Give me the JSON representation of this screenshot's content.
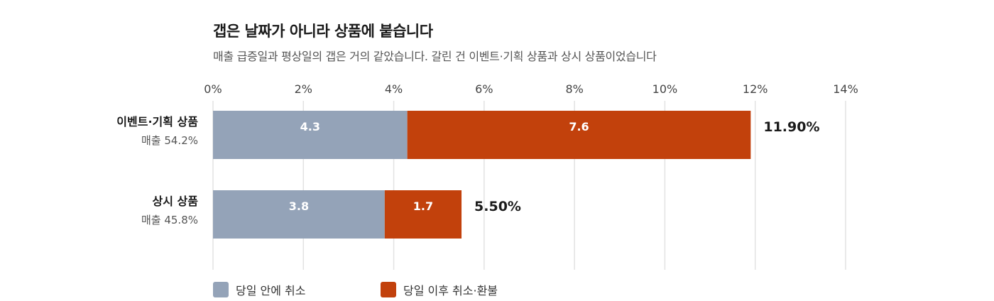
{
  "title": "갭은 날짜가 아니라 상품에 붙습니다",
  "subtitle": "매출 급증일과 평상일의 갭은 거의 같았습니다. 갈린 건 이벤트·기획 상품과 상시 상품이었습니다",
  "colors": {
    "same_day": "#94a3b8",
    "after": "#c2410c",
    "grid": "#e2e2e2"
  },
  "chart_data": {
    "type": "bar",
    "orientation": "horizontal",
    "stacked": true,
    "categories": [
      "이벤트·기획 상품",
      "상시 상품"
    ],
    "category_sublabels": [
      "매출 54.2%",
      "매출 45.8%"
    ],
    "series": [
      {
        "name": "당일 안에 취소",
        "values": [
          4.3,
          3.8
        ],
        "value_labels": [
          "4.3",
          "3.8"
        ]
      },
      {
        "name": "당일 이후 취소·환불",
        "values": [
          7.6,
          1.7
        ],
        "value_labels": [
          "7.6",
          "1.7"
        ]
      }
    ],
    "totals": [
      11.9,
      5.5
    ],
    "total_labels": [
      "11.90%",
      "5.50%"
    ],
    "xlim": [
      0,
      14
    ],
    "xticks": [
      0,
      2,
      4,
      6,
      8,
      10,
      12,
      14
    ],
    "xtick_labels": [
      "0%",
      "2%",
      "4%",
      "6%",
      "8%",
      "10%",
      "12%",
      "14%"
    ],
    "x_axis_position": "top",
    "grid": true,
    "legend_position": "bottom-left"
  }
}
